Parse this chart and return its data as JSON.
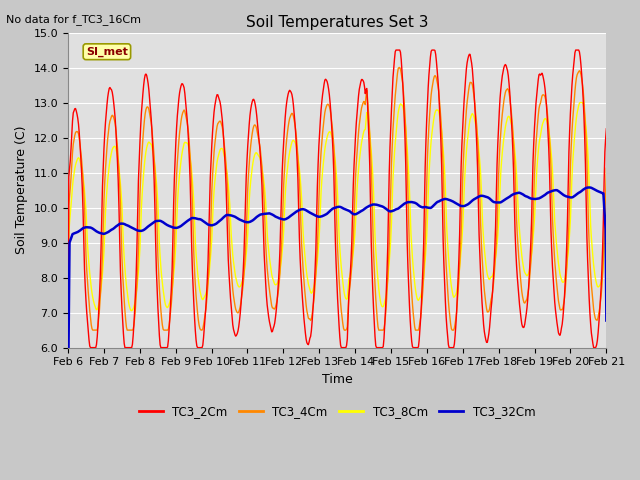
{
  "title": "Soil Temperatures Set 3",
  "xlabel": "Time",
  "ylabel": "Soil Temperature (C)",
  "no_data_text": "No data for f_TC3_16Cm",
  "si_met_label": "SI_met",
  "ylim": [
    6.0,
    15.0
  ],
  "yticks": [
    6.0,
    7.0,
    8.0,
    9.0,
    10.0,
    11.0,
    12.0,
    13.0,
    14.0,
    15.0
  ],
  "x_tick_labels": [
    "Feb 6",
    "Feb 7",
    "Feb 8",
    "Feb 9",
    "Feb 10",
    "Feb 11",
    "Feb 12",
    "Feb 13",
    "Feb 14",
    "Feb 15",
    "Feb 16",
    "Feb 17",
    "Feb 18",
    "Feb 19",
    "Feb 20",
    "Feb 21"
  ],
  "colors": {
    "TC3_2Cm": "#ff0000",
    "TC3_4Cm": "#ff8800",
    "TC3_8Cm": "#ffff00",
    "TC3_32Cm": "#0000cc"
  },
  "legend_labels": [
    "TC3_2Cm",
    "TC3_4Cm",
    "TC3_8Cm",
    "TC3_32Cm"
  ],
  "fig_bg_color": "#c8c8c8",
  "plot_bg_color": "#e0e0e0",
  "grid_color": "#ffffff",
  "title_fontsize": 11,
  "axis_fontsize": 9,
  "tick_fontsize": 8,
  "linewidth_thin": 1.0,
  "linewidth_blue": 1.8
}
